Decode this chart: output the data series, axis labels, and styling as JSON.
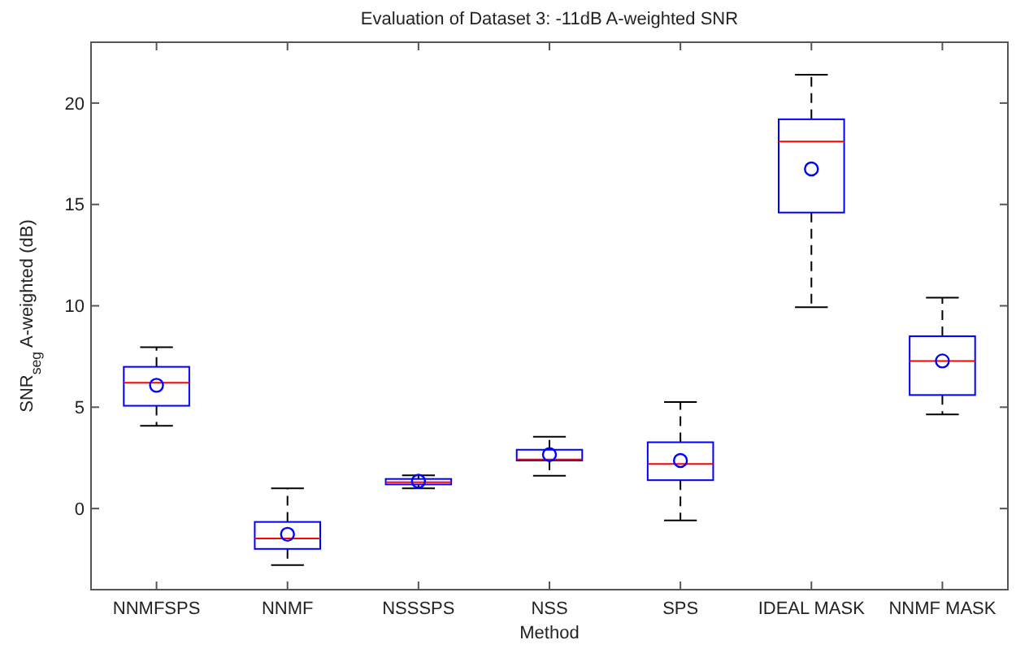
{
  "chart_data": {
    "type": "box",
    "title": "Evaluation of Dataset 3: -11dB A-weighted SNR",
    "xlabel": "Method",
    "ylabel": "SNR$_{seg}$ A-weighted (dB)",
    "categories": [
      "NNMFSPS",
      "NNMF",
      "NSSSPS",
      "NSS",
      "SPS",
      "IDEAL MASK",
      "NNMF MASK"
    ],
    "color": "#0000ff",
    "marker": "circle",
    "grid": false,
    "ylim": [
      -4,
      23
    ],
    "yticks": [
      0,
      5,
      10,
      15,
      20
    ],
    "boxes": [
      {
        "low": 4.08,
        "q1": 5.07,
        "median": 6.21,
        "q3": 6.99,
        "high": 7.96,
        "mean": 6.08
      },
      {
        "low": -2.79,
        "q1": -1.99,
        "median": -1.48,
        "q3": -0.66,
        "high": 1.0,
        "mean": -1.27
      },
      {
        "low": 1.0,
        "q1": 1.19,
        "median": 1.3,
        "q3": 1.46,
        "high": 1.64,
        "mean": 1.35
      },
      {
        "low": 1.62,
        "q1": 2.37,
        "median": 2.42,
        "q3": 2.9,
        "high": 3.54,
        "mean": 2.66
      },
      {
        "low": -0.58,
        "q1": 1.4,
        "median": 2.2,
        "q3": 3.27,
        "high": 5.25,
        "mean": 2.37
      },
      {
        "low": 9.93,
        "q1": 14.6,
        "median": 18.1,
        "q3": 19.2,
        "high": 21.4,
        "mean": 16.75
      },
      {
        "low": 4.64,
        "q1": 5.6,
        "median": 7.28,
        "q3": 8.5,
        "high": 10.4,
        "mean": 7.28
      }
    ]
  }
}
